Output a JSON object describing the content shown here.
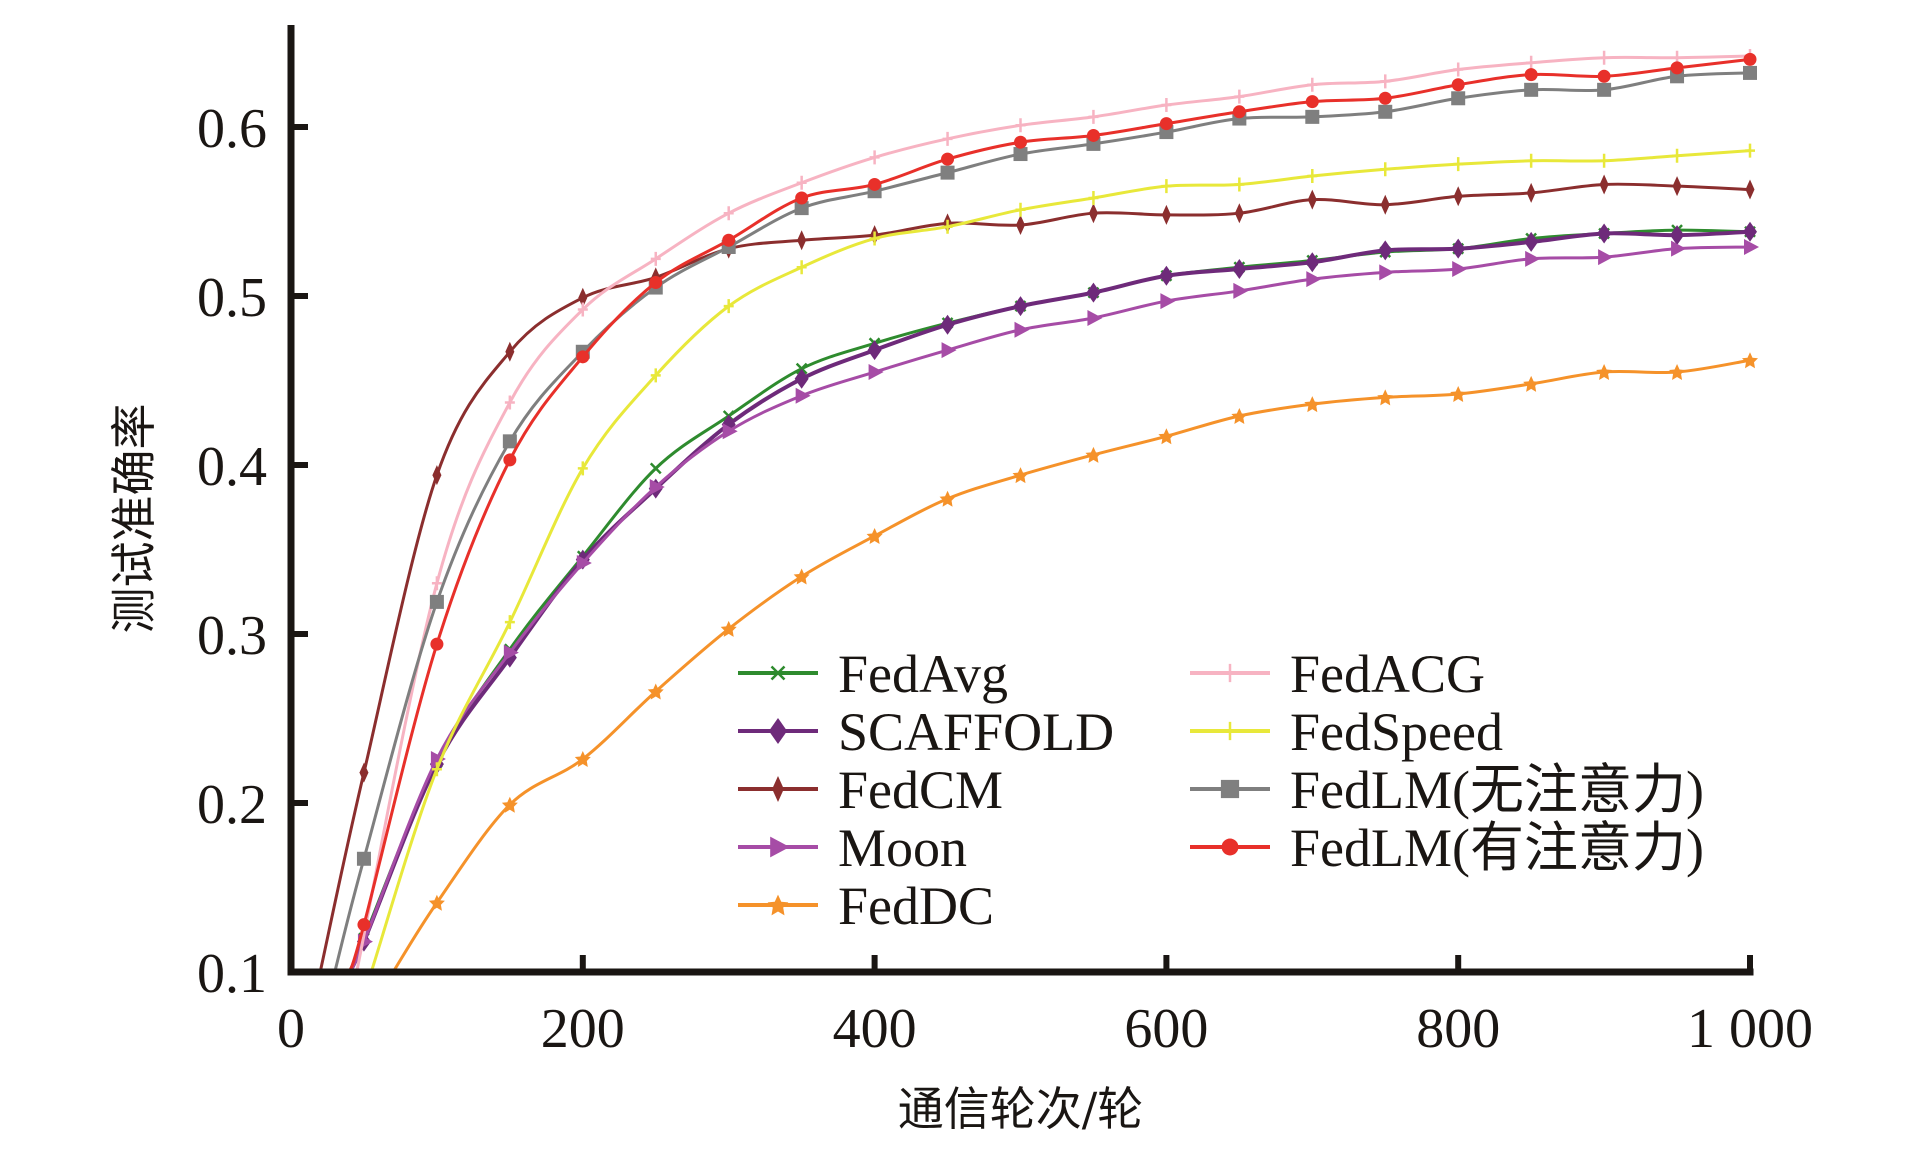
{
  "chart_data": {
    "type": "line",
    "title": "",
    "xlabel": "通信轮次/轮",
    "ylabel": "测试准确率",
    "xlim": [
      0,
      1000
    ],
    "ylim": [
      0.1,
      0.66
    ],
    "xticks": [
      0,
      200,
      400,
      600,
      800,
      1000
    ],
    "xtick_labels": [
      "0",
      "200",
      "400",
      "600",
      "800",
      "1 000"
    ],
    "yticks": [
      0.1,
      0.2,
      0.3,
      0.4,
      0.5,
      0.6
    ],
    "ytick_labels": [
      "0.1",
      "0.2",
      "0.3",
      "0.4",
      "0.5",
      "0.6"
    ],
    "grid": false,
    "legend_position": "lower-right",
    "series": [
      {
        "name": "FedAvg",
        "color": "#2e8b2e",
        "marker": "x",
        "x": [
          40,
          50,
          100,
          150,
          200,
          250,
          300,
          350,
          400,
          450,
          500,
          550,
          600,
          650,
          700,
          750,
          800,
          850,
          900,
          950,
          1000
        ],
        "values": [
          0.1,
          0.12,
          0.224,
          0.291,
          0.346,
          0.398,
          0.429,
          0.457,
          0.472,
          0.484,
          0.494,
          0.502,
          0.512,
          0.517,
          0.521,
          0.526,
          0.528,
          0.534,
          0.537,
          0.539,
          0.538
        ]
      },
      {
        "name": "SCAFFOLD",
        "color": "#6e2a7a",
        "marker": "diamond",
        "x": [
          40,
          50,
          100,
          150,
          200,
          250,
          300,
          350,
          400,
          450,
          500,
          550,
          600,
          650,
          700,
          750,
          800,
          850,
          900,
          950,
          1000
        ],
        "values": [
          0.1,
          0.118,
          0.223,
          0.286,
          0.344,
          0.386,
          0.424,
          0.451,
          0.468,
          0.483,
          0.494,
          0.502,
          0.512,
          0.516,
          0.52,
          0.527,
          0.528,
          0.532,
          0.537,
          0.536,
          0.538
        ]
      },
      {
        "name": "FedCM",
        "color": "#8b2e2e",
        "marker": "thin-diamond",
        "x": [
          20,
          50,
          100,
          150,
          200,
          250,
          300,
          350,
          400,
          450,
          500,
          550,
          600,
          650,
          700,
          750,
          800,
          850,
          900,
          950,
          1000
        ],
        "values": [
          0.1,
          0.218,
          0.394,
          0.467,
          0.499,
          0.511,
          0.528,
          0.533,
          0.536,
          0.543,
          0.542,
          0.549,
          0.548,
          0.549,
          0.557,
          0.554,
          0.559,
          0.561,
          0.566,
          0.565,
          0.563
        ]
      },
      {
        "name": "Moon",
        "color": "#a64ca6",
        "marker": "triangle-right",
        "x": [
          40,
          50,
          100,
          150,
          200,
          250,
          300,
          350,
          400,
          450,
          500,
          550,
          600,
          650,
          700,
          750,
          800,
          850,
          900,
          950,
          1000
        ],
        "values": [
          0.1,
          0.118,
          0.226,
          0.289,
          0.342,
          0.387,
          0.42,
          0.441,
          0.455,
          0.468,
          0.48,
          0.487,
          0.497,
          0.503,
          0.51,
          0.514,
          0.516,
          0.522,
          0.523,
          0.528,
          0.529
        ]
      },
      {
        "name": "FedDC",
        "color": "#f5922a",
        "marker": "star",
        "x": [
          70,
          100,
          150,
          200,
          250,
          300,
          350,
          400,
          450,
          500,
          550,
          600,
          650,
          700,
          750,
          800,
          850,
          900,
          950,
          1000
        ],
        "values": [
          0.1,
          0.141,
          0.199,
          0.226,
          0.266,
          0.303,
          0.334,
          0.358,
          0.38,
          0.394,
          0.406,
          0.417,
          0.429,
          0.436,
          0.44,
          0.442,
          0.448,
          0.455,
          0.455,
          0.462
        ]
      },
      {
        "name": "FedACG",
        "color": "#f7b3c2",
        "marker": "plus",
        "x": [
          45,
          100,
          150,
          200,
          250,
          300,
          350,
          400,
          450,
          500,
          550,
          600,
          650,
          700,
          750,
          800,
          850,
          900,
          950,
          1000
        ],
        "values": [
          0.1,
          0.33,
          0.437,
          0.492,
          0.522,
          0.549,
          0.567,
          0.582,
          0.593,
          0.601,
          0.606,
          0.613,
          0.618,
          0.625,
          0.627,
          0.634,
          0.638,
          0.641,
          0.641,
          0.642
        ]
      },
      {
        "name": "FedSpeed",
        "color": "#e8e83a",
        "marker": "plus",
        "x": [
          55,
          100,
          150,
          200,
          250,
          300,
          350,
          400,
          450,
          500,
          550,
          600,
          650,
          700,
          750,
          800,
          850,
          900,
          950,
          1000
        ],
        "values": [
          0.1,
          0.22,
          0.307,
          0.398,
          0.453,
          0.494,
          0.517,
          0.534,
          0.541,
          0.551,
          0.558,
          0.565,
          0.566,
          0.571,
          0.575,
          0.578,
          0.58,
          0.58,
          0.583,
          0.586
        ]
      },
      {
        "name": "FedLM(无注意力)",
        "color": "#7f7f7f",
        "marker": "square",
        "x": [
          30,
          50,
          100,
          150,
          200,
          250,
          300,
          350,
          400,
          450,
          500,
          550,
          600,
          650,
          700,
          750,
          800,
          850,
          900,
          950,
          1000
        ],
        "values": [
          0.1,
          0.167,
          0.319,
          0.414,
          0.467,
          0.505,
          0.529,
          0.552,
          0.562,
          0.573,
          0.584,
          0.59,
          0.597,
          0.605,
          0.606,
          0.609,
          0.617,
          0.622,
          0.622,
          0.63,
          0.632
        ]
      },
      {
        "name": "FedLM(有注意力)",
        "color": "#e8302a",
        "marker": "circle",
        "x": [
          40,
          50,
          100,
          150,
          200,
          250,
          300,
          350,
          400,
          450,
          500,
          550,
          600,
          650,
          700,
          750,
          800,
          850,
          900,
          950,
          1000
        ],
        "values": [
          0.1,
          0.128,
          0.294,
          0.403,
          0.464,
          0.508,
          0.533,
          0.558,
          0.566,
          0.581,
          0.591,
          0.595,
          0.602,
          0.609,
          0.615,
          0.617,
          0.625,
          0.631,
          0.63,
          0.635,
          0.64
        ]
      }
    ]
  }
}
